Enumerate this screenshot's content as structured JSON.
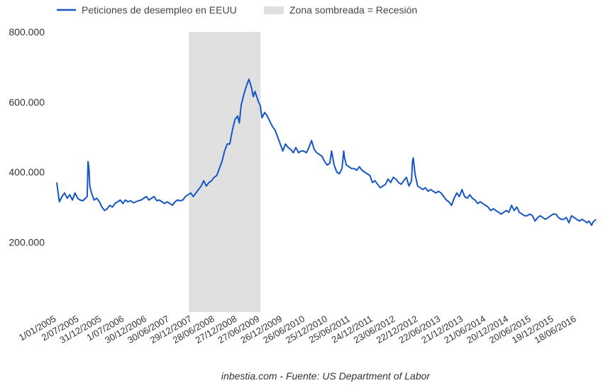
{
  "colors": {
    "line": "#1656c4",
    "recession": "#e0e0e0",
    "text": "#333333"
  },
  "chart_data": {
    "type": "line",
    "title": "",
    "xlabel": "",
    "ylabel": "",
    "legend": {
      "placement": "top-left",
      "series_label": "Peticiones de desempleo en EEUU",
      "shade_label": "Zona sombreada = Recesión"
    },
    "source": "inbestia.com - Fuente: US Department of Labor",
    "ylim": [
      0,
      800000
    ],
    "yticks": [
      200000,
      400000,
      600000,
      800000
    ],
    "ytick_labels": [
      "200.000",
      "400.000",
      "600.000",
      "800.000"
    ],
    "xlim": [
      "2005-01-01",
      "2016-11-19"
    ],
    "xtick_dates": [
      "2005-01-01",
      "2005-07-02",
      "2005-12-31",
      "2006-07-01",
      "2006-12-30",
      "2007-06-30",
      "2007-12-29",
      "2008-06-28",
      "2008-12-27",
      "2009-06-27",
      "2009-12-26",
      "2010-06-26",
      "2010-12-25",
      "2011-06-25",
      "2011-12-24",
      "2012-06-23",
      "2012-12-22",
      "2013-06-22",
      "2013-12-21",
      "2014-06-21",
      "2014-12-20",
      "2015-06-20",
      "2015-12-19",
      "2016-06-18"
    ],
    "xtick_labels": [
      "1/01/2005",
      "2/07/2005",
      "31/12/2005",
      "1/07/2006",
      "30/12/2006",
      "30/06/2007",
      "29/12/2007",
      "28/06/2008",
      "27/12/2008",
      "27/06/2009",
      "26/12/2009",
      "26/06/2010",
      "25/12/2010",
      "25/06/2011",
      "24/12/2011",
      "23/06/2012",
      "22/12/2012",
      "22/06/2013",
      "21/12/2013",
      "21/06/2014",
      "20/12/2014",
      "20/06/2015",
      "19/12/2015",
      "18/06/2016"
    ],
    "recession": {
      "start": "2007-12-01",
      "end": "2009-06-30"
    },
    "series": [
      {
        "name": "Peticiones de desempleo en EEUU",
        "points": [
          [
            "2005-01-01",
            370000
          ],
          [
            "2005-01-22",
            315000
          ],
          [
            "2005-02-12",
            330000
          ],
          [
            "2005-03-05",
            340000
          ],
          [
            "2005-03-26",
            325000
          ],
          [
            "2005-04-16",
            335000
          ],
          [
            "2005-05-07",
            320000
          ],
          [
            "2005-05-28",
            340000
          ],
          [
            "2005-06-18",
            325000
          ],
          [
            "2005-07-09",
            320000
          ],
          [
            "2005-07-30",
            318000
          ],
          [
            "2005-08-20",
            325000
          ],
          [
            "2005-09-03",
            330000
          ],
          [
            "2005-09-10",
            430000
          ],
          [
            "2005-09-17",
            410000
          ],
          [
            "2005-09-24",
            360000
          ],
          [
            "2005-10-08",
            340000
          ],
          [
            "2005-10-29",
            320000
          ],
          [
            "2005-11-19",
            325000
          ],
          [
            "2005-12-10",
            315000
          ],
          [
            "2005-12-31",
            300000
          ],
          [
            "2006-01-21",
            290000
          ],
          [
            "2006-02-11",
            295000
          ],
          [
            "2006-03-04",
            305000
          ],
          [
            "2006-03-25",
            300000
          ],
          [
            "2006-04-15",
            310000
          ],
          [
            "2006-05-06",
            315000
          ],
          [
            "2006-05-27",
            320000
          ],
          [
            "2006-06-17",
            310000
          ],
          [
            "2006-07-08",
            320000
          ],
          [
            "2006-07-29",
            315000
          ],
          [
            "2006-08-19",
            318000
          ],
          [
            "2006-09-09",
            312000
          ],
          [
            "2006-09-30",
            315000
          ],
          [
            "2006-10-21",
            318000
          ],
          [
            "2006-11-11",
            320000
          ],
          [
            "2006-12-02",
            325000
          ],
          [
            "2006-12-23",
            330000
          ],
          [
            "2007-01-13",
            320000
          ],
          [
            "2007-02-03",
            325000
          ],
          [
            "2007-02-24",
            330000
          ],
          [
            "2007-03-17",
            318000
          ],
          [
            "2007-04-07",
            320000
          ],
          [
            "2007-04-28",
            315000
          ],
          [
            "2007-05-19",
            310000
          ],
          [
            "2007-06-09",
            315000
          ],
          [
            "2007-06-30",
            310000
          ],
          [
            "2007-07-21",
            305000
          ],
          [
            "2007-08-11",
            315000
          ],
          [
            "2007-09-01",
            320000
          ],
          [
            "2007-09-22",
            318000
          ],
          [
            "2007-10-13",
            320000
          ],
          [
            "2007-11-03",
            330000
          ],
          [
            "2007-11-24",
            335000
          ],
          [
            "2007-12-15",
            340000
          ],
          [
            "2008-01-05",
            330000
          ],
          [
            "2008-01-26",
            340000
          ],
          [
            "2008-02-16",
            350000
          ],
          [
            "2008-03-08",
            360000
          ],
          [
            "2008-03-29",
            375000
          ],
          [
            "2008-04-19",
            360000
          ],
          [
            "2008-05-10",
            370000
          ],
          [
            "2008-05-31",
            375000
          ],
          [
            "2008-06-21",
            385000
          ],
          [
            "2008-07-12",
            390000
          ],
          [
            "2008-08-02",
            410000
          ],
          [
            "2008-08-23",
            430000
          ],
          [
            "2008-09-13",
            460000
          ],
          [
            "2008-10-04",
            480000
          ],
          [
            "2008-10-25",
            480000
          ],
          [
            "2008-11-15",
            520000
          ],
          [
            "2008-12-06",
            550000
          ],
          [
            "2008-12-27",
            560000
          ],
          [
            "2009-01-10",
            540000
          ],
          [
            "2009-01-24",
            590000
          ],
          [
            "2009-02-14",
            620000
          ],
          [
            "2009-03-07",
            645000
          ],
          [
            "2009-03-28",
            665000
          ],
          [
            "2009-04-18",
            640000
          ],
          [
            "2009-05-02",
            615000
          ],
          [
            "2009-05-16",
            630000
          ],
          [
            "2009-05-30",
            615000
          ],
          [
            "2009-06-13",
            600000
          ],
          [
            "2009-06-27",
            590000
          ],
          [
            "2009-07-11",
            555000
          ],
          [
            "2009-08-01",
            570000
          ],
          [
            "2009-08-22",
            560000
          ],
          [
            "2009-09-12",
            545000
          ],
          [
            "2009-10-03",
            530000
          ],
          [
            "2009-10-24",
            520000
          ],
          [
            "2009-11-14",
            500000
          ],
          [
            "2009-12-05",
            480000
          ],
          [
            "2009-12-26",
            460000
          ],
          [
            "2010-01-16",
            480000
          ],
          [
            "2010-02-06",
            470000
          ],
          [
            "2010-02-27",
            465000
          ],
          [
            "2010-03-20",
            455000
          ],
          [
            "2010-04-10",
            470000
          ],
          [
            "2010-05-01",
            455000
          ],
          [
            "2010-05-22",
            460000
          ],
          [
            "2010-06-12",
            460000
          ],
          [
            "2010-07-03",
            455000
          ],
          [
            "2010-07-24",
            470000
          ],
          [
            "2010-08-14",
            490000
          ],
          [
            "2010-09-04",
            465000
          ],
          [
            "2010-09-25",
            455000
          ],
          [
            "2010-10-16",
            450000
          ],
          [
            "2010-11-06",
            445000
          ],
          [
            "2010-11-27",
            430000
          ],
          [
            "2010-12-18",
            420000
          ],
          [
            "2011-01-08",
            425000
          ],
          [
            "2011-01-22",
            460000
          ],
          [
            "2011-02-12",
            420000
          ],
          [
            "2011-03-05",
            400000
          ],
          [
            "2011-03-26",
            395000
          ],
          [
            "2011-04-16",
            410000
          ],
          [
            "2011-04-30",
            460000
          ],
          [
            "2011-05-07",
            440000
          ],
          [
            "2011-05-21",
            420000
          ],
          [
            "2011-06-11",
            415000
          ],
          [
            "2011-07-02",
            410000
          ],
          [
            "2011-07-23",
            410000
          ],
          [
            "2011-08-13",
            405000
          ],
          [
            "2011-09-03",
            415000
          ],
          [
            "2011-09-24",
            405000
          ],
          [
            "2011-10-15",
            400000
          ],
          [
            "2011-11-05",
            395000
          ],
          [
            "2011-11-26",
            390000
          ],
          [
            "2011-12-17",
            370000
          ],
          [
            "2012-01-07",
            375000
          ],
          [
            "2012-01-28",
            365000
          ],
          [
            "2012-02-18",
            355000
          ],
          [
            "2012-03-10",
            360000
          ],
          [
            "2012-03-31",
            365000
          ],
          [
            "2012-04-21",
            380000
          ],
          [
            "2012-05-12",
            370000
          ],
          [
            "2012-06-02",
            385000
          ],
          [
            "2012-06-23",
            380000
          ],
          [
            "2012-07-14",
            370000
          ],
          [
            "2012-08-04",
            365000
          ],
          [
            "2012-08-25",
            375000
          ],
          [
            "2012-09-15",
            385000
          ],
          [
            "2012-10-06",
            360000
          ],
          [
            "2012-10-27",
            375000
          ],
          [
            "2012-11-03",
            430000
          ],
          [
            "2012-11-10",
            440000
          ],
          [
            "2012-11-24",
            395000
          ],
          [
            "2012-12-15",
            360000
          ],
          [
            "2013-01-05",
            355000
          ],
          [
            "2013-01-26",
            350000
          ],
          [
            "2013-02-16",
            355000
          ],
          [
            "2013-03-09",
            345000
          ],
          [
            "2013-03-30",
            350000
          ],
          [
            "2013-04-20",
            345000
          ],
          [
            "2013-05-11",
            340000
          ],
          [
            "2013-06-01",
            345000
          ],
          [
            "2013-06-22",
            340000
          ],
          [
            "2013-07-13",
            330000
          ],
          [
            "2013-08-03",
            320000
          ],
          [
            "2013-08-24",
            315000
          ],
          [
            "2013-09-14",
            305000
          ],
          [
            "2013-10-05",
            325000
          ],
          [
            "2013-10-26",
            340000
          ],
          [
            "2013-11-16",
            330000
          ],
          [
            "2013-12-07",
            350000
          ],
          [
            "2013-12-28",
            330000
          ],
          [
            "2014-01-18",
            325000
          ],
          [
            "2014-02-08",
            335000
          ],
          [
            "2014-03-01",
            325000
          ],
          [
            "2014-03-22",
            320000
          ],
          [
            "2014-04-12",
            310000
          ],
          [
            "2014-05-03",
            315000
          ],
          [
            "2014-05-24",
            310000
          ],
          [
            "2014-06-14",
            305000
          ],
          [
            "2014-07-05",
            300000
          ],
          [
            "2014-07-26",
            290000
          ],
          [
            "2014-08-16",
            295000
          ],
          [
            "2014-09-06",
            290000
          ],
          [
            "2014-09-27",
            285000
          ],
          [
            "2014-10-18",
            280000
          ],
          [
            "2014-11-08",
            285000
          ],
          [
            "2014-11-29",
            290000
          ],
          [
            "2014-12-20",
            285000
          ],
          [
            "2015-01-10",
            305000
          ],
          [
            "2015-01-31",
            290000
          ],
          [
            "2015-02-21",
            300000
          ],
          [
            "2015-03-14",
            285000
          ],
          [
            "2015-04-04",
            280000
          ],
          [
            "2015-04-25",
            275000
          ],
          [
            "2015-05-16",
            275000
          ],
          [
            "2015-06-06",
            280000
          ],
          [
            "2015-06-27",
            275000
          ],
          [
            "2015-07-18",
            260000
          ],
          [
            "2015-08-08",
            270000
          ],
          [
            "2015-08-29",
            275000
          ],
          [
            "2015-09-19",
            270000
          ],
          [
            "2015-10-10",
            265000
          ],
          [
            "2015-10-31",
            270000
          ],
          [
            "2015-11-21",
            275000
          ],
          [
            "2015-12-12",
            280000
          ],
          [
            "2016-01-02",
            280000
          ],
          [
            "2016-01-23",
            270000
          ],
          [
            "2016-02-13",
            265000
          ],
          [
            "2016-03-05",
            265000
          ],
          [
            "2016-03-26",
            270000
          ],
          [
            "2016-04-16",
            255000
          ],
          [
            "2016-05-07",
            275000
          ],
          [
            "2016-05-28",
            270000
          ],
          [
            "2016-06-18",
            265000
          ],
          [
            "2016-07-09",
            260000
          ],
          [
            "2016-07-30",
            265000
          ],
          [
            "2016-08-20",
            260000
          ],
          [
            "2016-09-10",
            255000
          ],
          [
            "2016-09-24",
            260000
          ],
          [
            "2016-10-15",
            248000
          ],
          [
            "2016-10-29",
            258000
          ],
          [
            "2016-11-12",
            262000
          ],
          [
            "2016-11-19",
            265000
          ]
        ]
      }
    ]
  }
}
